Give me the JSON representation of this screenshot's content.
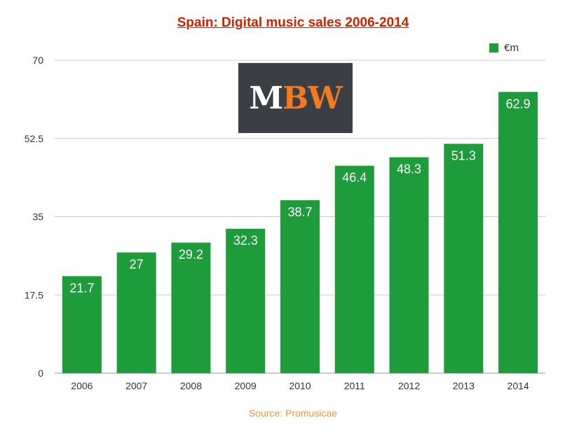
{
  "colors": {
    "bar": "#1e9b3b",
    "title": "#cc2200",
    "source": "#f0963c",
    "grid": "#cccccc"
  },
  "logo": {
    "text_m": "M",
    "text_bw": "BW"
  },
  "chart_data": {
    "type": "bar",
    "title": "Spain: Digital music sales 2006-2014",
    "source": "Source: Promusicae",
    "categories": [
      "2006",
      "2007",
      "2008",
      "2009",
      "2010",
      "2011",
      "2012",
      "2013",
      "2014"
    ],
    "series": [
      {
        "name": "€m",
        "values": [
          21.7,
          27,
          29.2,
          32.3,
          38.7,
          46.4,
          48.3,
          51.3,
          62.9
        ]
      }
    ],
    "value_labels": [
      "21.7",
      "27",
      "29.2",
      "32.3",
      "38.7",
      "46.4",
      "48.3",
      "51.3",
      "62.9"
    ],
    "ylim": [
      0,
      70
    ],
    "yticks": [
      0,
      17.5,
      35,
      52.5,
      70
    ],
    "ytick_labels": [
      "0",
      "17.5",
      "35",
      "52.5",
      "70"
    ],
    "grid": true,
    "legend_position": "top-right"
  }
}
